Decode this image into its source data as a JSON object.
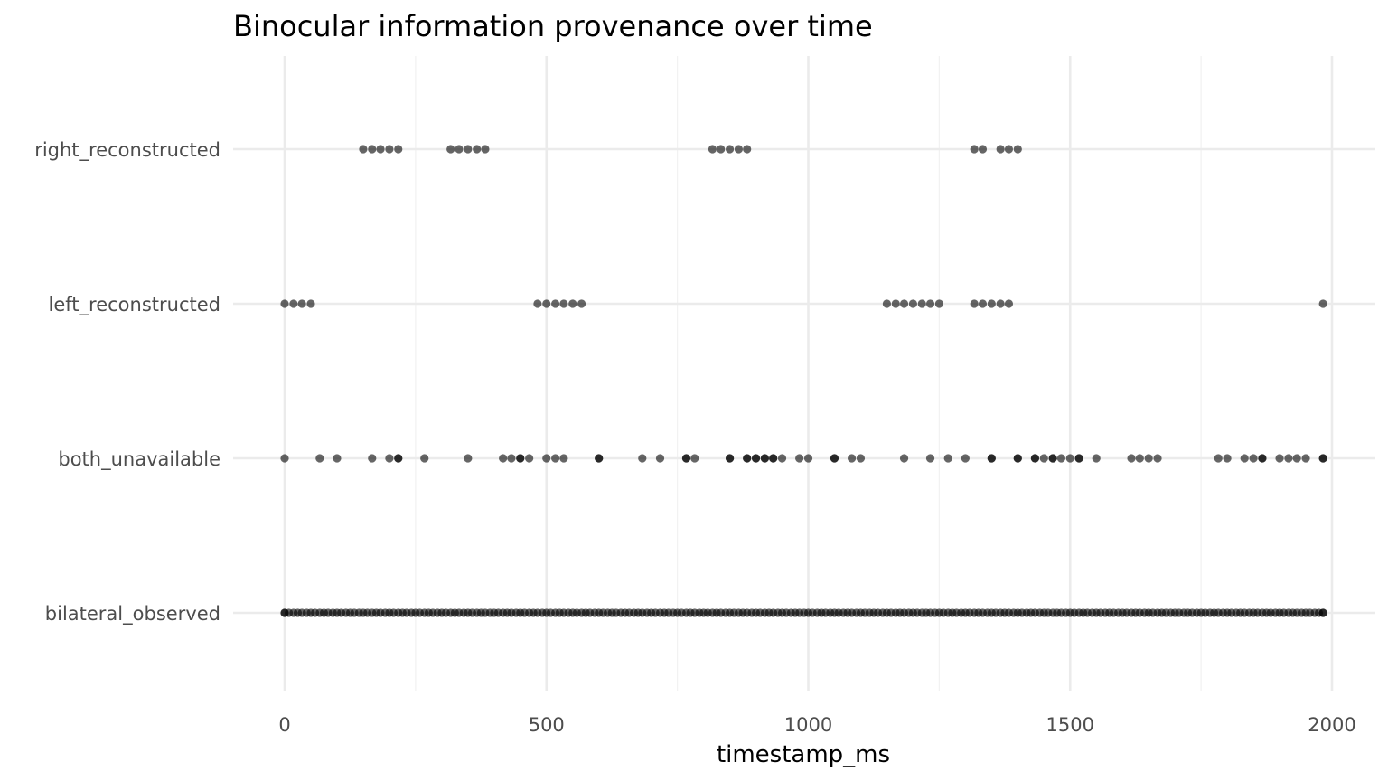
{
  "chart_data": {
    "type": "scatter",
    "title": "Binocular information provenance over time",
    "xlabel": "timestamp_ms",
    "ylabel": "",
    "xlim": [
      -100,
      2100
    ],
    "xticks": [
      0,
      500,
      1000,
      1500,
      2000
    ],
    "xtick_labels": [
      "0",
      "500",
      "1000",
      "1500",
      "2000"
    ],
    "categories": [
      "bilateral_observed",
      "both_unavailable",
      "left_reconstructed",
      "right_reconstructed"
    ],
    "grid": true,
    "legend": "none",
    "point_color": "#000000",
    "point_alpha": 0.6,
    "series": [
      {
        "category": "right_reconstructed",
        "x": [
          150,
          167,
          183,
          200,
          217,
          317,
          333,
          350,
          367,
          383,
          817,
          833,
          850,
          867,
          883,
          1317,
          1333,
          1367,
          1383,
          1400
        ]
      },
      {
        "category": "left_reconstructed",
        "x": [
          0,
          17,
          33,
          50,
          483,
          500,
          517,
          533,
          550,
          567,
          1150,
          1167,
          1183,
          1200,
          1217,
          1233,
          1250,
          1317,
          1333,
          1350,
          1367,
          1383,
          1983
        ]
      },
      {
        "category": "both_unavailable",
        "x": [
          0,
          67,
          100,
          167,
          200,
          217,
          217,
          267,
          350,
          417,
          433,
          450,
          450,
          467,
          500,
          517,
          533,
          600,
          600,
          683,
          717,
          767,
          767,
          783,
          850,
          850,
          883,
          883,
          900,
          900,
          917,
          917,
          933,
          933,
          950,
          983,
          1000,
          1050,
          1050,
          1083,
          1100,
          1183,
          1233,
          1267,
          1300,
          1350,
          1350,
          1400,
          1400,
          1433,
          1433,
          1450,
          1467,
          1467,
          1483,
          1500,
          1517,
          1517,
          1550,
          1617,
          1633,
          1650,
          1667,
          1783,
          1800,
          1833,
          1850,
          1867,
          1867,
          1900,
          1917,
          1933,
          1950,
          1983,
          1983
        ]
      },
      {
        "category": "bilateral_observed",
        "x": [
          0,
          17,
          33,
          50,
          67,
          83,
          100,
          117,
          133,
          150,
          167,
          183,
          200,
          217,
          233,
          250,
          267,
          283,
          300,
          317,
          333,
          350,
          367,
          383,
          400,
          417,
          433,
          450,
          467,
          483,
          500,
          517,
          533,
          550,
          567,
          583,
          600,
          617,
          633,
          650,
          667,
          683,
          700,
          717,
          733,
          750,
          767,
          783,
          800,
          817,
          833,
          850,
          867,
          883,
          900,
          917,
          933,
          950,
          967,
          983,
          1000,
          1017,
          1033,
          1050,
          1067,
          1083,
          1100,
          1117,
          1133,
          1150,
          1167,
          1183,
          1200,
          1217,
          1233,
          1250,
          1267,
          1283,
          1300,
          1317,
          1333,
          1350,
          1367,
          1383,
          1400,
          1417,
          1433,
          1450,
          1467,
          1483,
          1500,
          1517,
          1533,
          1550,
          1567,
          1583,
          1600,
          1617,
          1633,
          1650,
          1667,
          1683,
          1700,
          1717,
          1733,
          1750,
          1767,
          1783,
          1800,
          1817,
          1833,
          1850,
          1867,
          1883,
          1900,
          1917,
          1933,
          1950,
          1967,
          1983
        ],
        "overplotted_x": [
          0,
          8,
          25,
          42,
          58,
          75,
          92,
          108,
          125,
          142,
          158,
          175,
          192,
          208,
          225,
          242,
          258,
          275,
          292,
          308,
          325,
          342,
          358,
          375,
          392,
          408,
          425,
          442,
          458,
          475,
          492,
          508,
          525,
          542,
          558,
          575,
          592,
          608,
          625,
          642,
          658,
          675,
          692,
          708,
          725,
          742,
          758,
          775,
          792,
          808,
          825,
          842,
          858,
          875,
          892,
          908,
          925,
          942,
          958,
          975,
          992,
          1008,
          1025,
          1042,
          1058,
          1075,
          1092,
          1108,
          1125,
          1142,
          1158,
          1175,
          1192,
          1208,
          1225,
          1242,
          1258,
          1275,
          1292,
          1308,
          1325,
          1342,
          1358,
          1375,
          1392,
          1408,
          1425,
          1442,
          1458,
          1475,
          1492,
          1508,
          1525,
          1542,
          1558,
          1575,
          1592,
          1608,
          1625,
          1642,
          1658,
          1675,
          1692,
          1708,
          1725,
          1742,
          1758,
          1775,
          1792,
          1808,
          1825,
          1842,
          1858,
          1875,
          1892,
          1908,
          1925,
          1942,
          1958,
          1975,
          1983
        ]
      }
    ]
  }
}
